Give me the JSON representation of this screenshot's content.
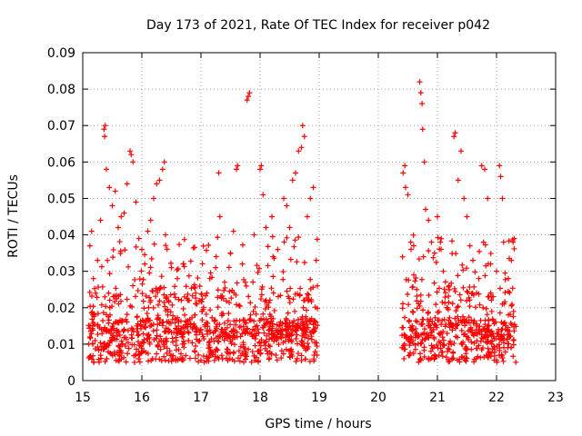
{
  "chart_data": {
    "type": "scatter",
    "title": "Day 173 of 2021, Rate Of TEC Index for receiver p042",
    "xlabel": "GPS time / hours",
    "ylabel": "ROTI / TECUs",
    "xlim": [
      15,
      23
    ],
    "ylim": [
      0,
      0.09
    ],
    "x_ticks": [
      15,
      16,
      17,
      18,
      19,
      20,
      21,
      22,
      23
    ],
    "y_ticks": [
      0,
      0.01,
      0.02,
      0.03,
      0.04,
      0.05,
      0.06,
      0.07,
      0.08,
      0.09
    ],
    "x_tick_labels": [
      "15",
      "16",
      "17",
      "18",
      "19",
      "20",
      "21",
      "22",
      "23"
    ],
    "y_tick_labels": [
      "0",
      "0.01",
      "0.02",
      "0.03",
      "0.04",
      "0.05",
      "0.06",
      "0.07",
      "0.08",
      "0.09"
    ],
    "grid": true,
    "marker": "+",
    "color": "#ff0000",
    "series": [
      {
        "name": "ROTI",
        "segments": [
          {
            "start": 15.1,
            "end": 18.98
          },
          {
            "start": 20.4,
            "end": 22.33
          }
        ],
        "points": [
          [
            15.15,
            0.041
          ],
          [
            15.12,
            0.037
          ],
          [
            15.18,
            0.028
          ],
          [
            15.22,
            0.024
          ],
          [
            15.25,
            0.033
          ],
          [
            15.3,
            0.044
          ],
          [
            15.36,
            0.069
          ],
          [
            15.38,
            0.07
          ],
          [
            15.37,
            0.067
          ],
          [
            15.4,
            0.058
          ],
          [
            15.45,
            0.053
          ],
          [
            15.5,
            0.048
          ],
          [
            15.55,
            0.052
          ],
          [
            15.6,
            0.042
          ],
          [
            15.65,
            0.045
          ],
          [
            15.7,
            0.046
          ],
          [
            15.75,
            0.054
          ],
          [
            15.8,
            0.063
          ],
          [
            15.82,
            0.062
          ],
          [
            15.85,
            0.06
          ],
          [
            15.9,
            0.049
          ],
          [
            15.95,
            0.039
          ],
          [
            16.0,
            0.036
          ],
          [
            16.05,
            0.032
          ],
          [
            16.1,
            0.041
          ],
          [
            16.15,
            0.044
          ],
          [
            16.2,
            0.05
          ],
          [
            16.25,
            0.054
          ],
          [
            16.3,
            0.055
          ],
          [
            16.35,
            0.058
          ],
          [
            16.38,
            0.06
          ],
          [
            16.4,
            0.04
          ],
          [
            16.5,
            0.031
          ],
          [
            16.6,
            0.028
          ],
          [
            16.7,
            0.032
          ],
          [
            16.8,
            0.022
          ],
          [
            16.9,
            0.018
          ],
          [
            17.0,
            0.014
          ],
          [
            17.1,
            0.024
          ],
          [
            17.15,
            0.028
          ],
          [
            17.25,
            0.031
          ],
          [
            17.3,
            0.057
          ],
          [
            17.32,
            0.045
          ],
          [
            17.4,
            0.027
          ],
          [
            17.5,
            0.035
          ],
          [
            17.55,
            0.041
          ],
          [
            17.6,
            0.058
          ],
          [
            17.62,
            0.059
          ],
          [
            17.7,
            0.032
          ],
          [
            17.75,
            0.027
          ],
          [
            17.8,
            0.078
          ],
          [
            17.82,
            0.079
          ],
          [
            17.78,
            0.077
          ],
          [
            17.9,
            0.04
          ],
          [
            18.0,
            0.058
          ],
          [
            18.02,
            0.059
          ],
          [
            18.05,
            0.051
          ],
          [
            18.1,
            0.042
          ],
          [
            18.2,
            0.045
          ],
          [
            18.3,
            0.036
          ],
          [
            18.4,
            0.05
          ],
          [
            18.45,
            0.048
          ],
          [
            18.5,
            0.042
          ],
          [
            18.55,
            0.055
          ],
          [
            18.6,
            0.057
          ],
          [
            18.65,
            0.063
          ],
          [
            18.7,
            0.064
          ],
          [
            18.72,
            0.07
          ],
          [
            18.75,
            0.067
          ],
          [
            18.8,
            0.045
          ],
          [
            18.85,
            0.05
          ],
          [
            18.9,
            0.053
          ],
          [
            18.95,
            0.033
          ],
          [
            18.97,
            0.026
          ],
          [
            20.42,
            0.057
          ],
          [
            20.45,
            0.059
          ],
          [
            20.46,
            0.053
          ],
          [
            20.5,
            0.051
          ],
          [
            20.55,
            0.038
          ],
          [
            20.6,
            0.029
          ],
          [
            20.65,
            0.025
          ],
          [
            20.7,
            0.082
          ],
          [
            20.72,
            0.079
          ],
          [
            20.74,
            0.076
          ],
          [
            20.75,
            0.069
          ],
          [
            20.78,
            0.06
          ],
          [
            20.8,
            0.047
          ],
          [
            20.85,
            0.044
          ],
          [
            20.9,
            0.038
          ],
          [
            20.95,
            0.035
          ],
          [
            21.0,
            0.045
          ],
          [
            21.05,
            0.038
          ],
          [
            21.1,
            0.03
          ],
          [
            21.2,
            0.026
          ],
          [
            21.28,
            0.067
          ],
          [
            21.3,
            0.068
          ],
          [
            21.35,
            0.055
          ],
          [
            21.4,
            0.063
          ],
          [
            21.45,
            0.05
          ],
          [
            21.5,
            0.045
          ],
          [
            21.55,
            0.037
          ],
          [
            21.6,
            0.033
          ],
          [
            21.7,
            0.028
          ],
          [
            21.75,
            0.059
          ],
          [
            21.8,
            0.058
          ],
          [
            21.85,
            0.05
          ],
          [
            21.9,
            0.032
          ],
          [
            22.0,
            0.03
          ],
          [
            22.05,
            0.059
          ],
          [
            22.07,
            0.056
          ],
          [
            22.1,
            0.05
          ],
          [
            22.12,
            0.038
          ],
          [
            22.2,
            0.028
          ],
          [
            22.25,
            0.033
          ],
          [
            22.28,
            0.038
          ],
          [
            22.3,
            0.039
          ]
        ],
        "baseline_density": "dense band 0.005–0.025 throughout both observing segments"
      }
    ]
  }
}
